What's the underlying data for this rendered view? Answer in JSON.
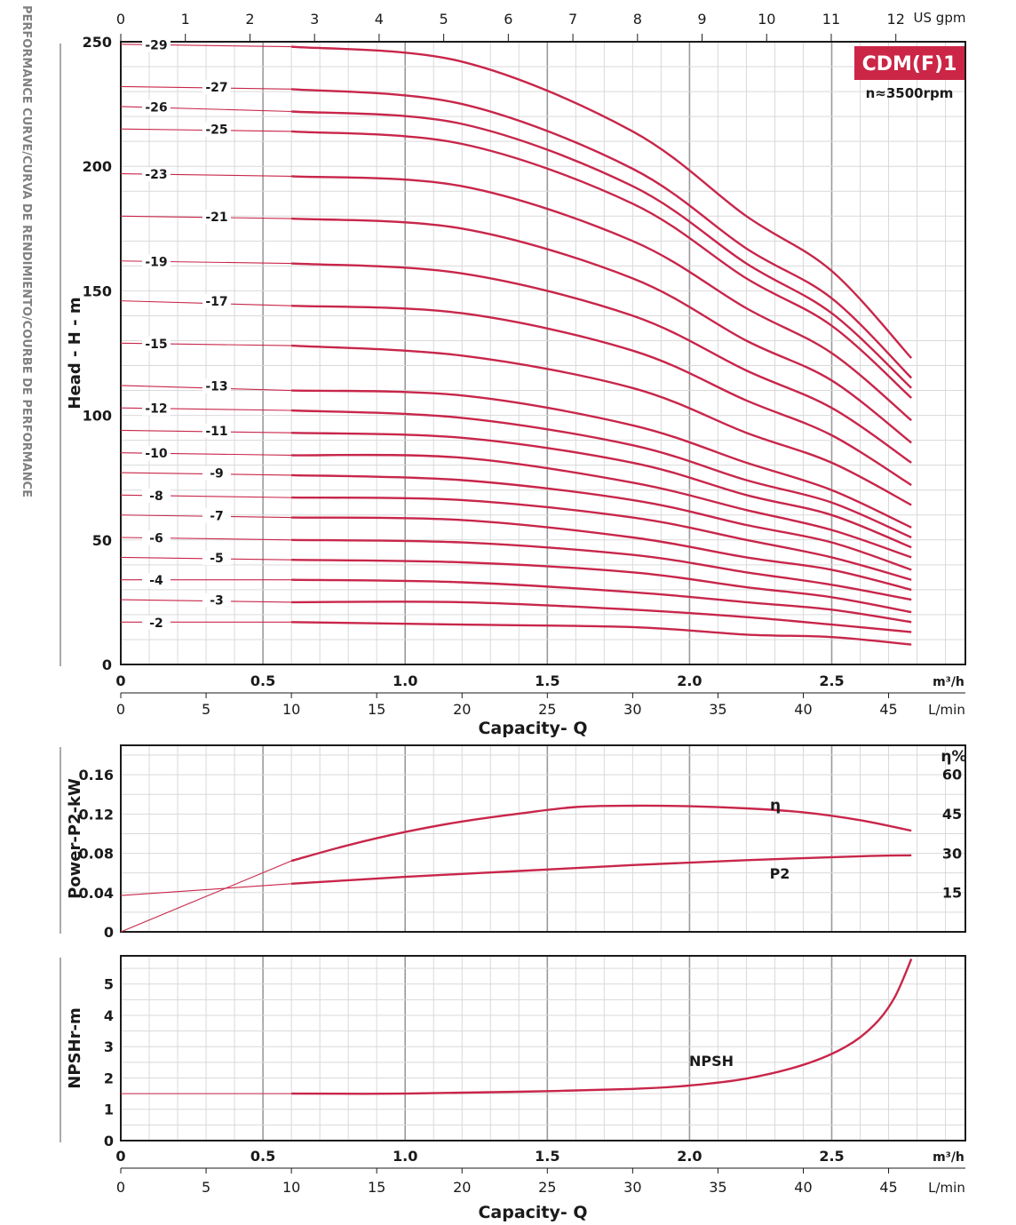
{
  "side_title": "PERFORMANCE CURVE/CURVA DE RENDIMIENTO/COURBE DE PERFORMANCE",
  "model_badge": "CDM(F)1",
  "speed_label": "n≈3500rpm",
  "colors": {
    "curve": "#c8264a",
    "grid_minor": "#d9d9d9",
    "grid_major": "#9a9a9a",
    "frame": "#1a1a1a",
    "badge_bg": "#cc2647",
    "badge_text": "#ffffff"
  },
  "chart_data": [
    {
      "type": "line",
      "name": "head-chart",
      "ylabel": "Head - H - m",
      "ylim": [
        0,
        250
      ],
      "yticks": [
        0,
        50,
        100,
        150,
        200,
        250
      ],
      "xlim_m3h": [
        0,
        2.97
      ],
      "x_top_unit": "US gpm",
      "x_top_ticks": [
        0,
        1,
        2,
        3,
        4,
        5,
        6,
        7,
        8,
        9,
        10,
        11,
        12
      ],
      "x_m3h_unit": "m³/h",
      "x_m3h_ticks": [
        "0",
        "0.5",
        "1.0",
        "1.5",
        "2.0",
        "2.5"
      ],
      "x_lmin_unit": "L/min",
      "x_lmin_ticks": [
        0,
        5,
        10,
        15,
        20,
        25,
        30,
        35,
        40,
        45
      ],
      "xlabel": "Capacity- Q",
      "x": [
        0,
        0.6,
        1.2,
        1.8,
        2.2,
        2.5,
        2.78
      ],
      "series": [
        {
          "name": "-29",
          "values": [
            249,
            248,
            242,
            214,
            180,
            158,
            123
          ]
        },
        {
          "name": "-27",
          "values": [
            232,
            231,
            225,
            199,
            167,
            147,
            115
          ]
        },
        {
          "name": "-26",
          "values": [
            224,
            222,
            217,
            192,
            161,
            141,
            111
          ]
        },
        {
          "name": "-25",
          "values": [
            215,
            214,
            209,
            185,
            155,
            136,
            107
          ]
        },
        {
          "name": "-23",
          "values": [
            197,
            196,
            192,
            170,
            143,
            125,
            98
          ]
        },
        {
          "name": "-21",
          "values": [
            180,
            179,
            175,
            155,
            130,
            114,
            89
          ]
        },
        {
          "name": "-19",
          "values": [
            162,
            161,
            157,
            140,
            118,
            103,
            81
          ]
        },
        {
          "name": "-17",
          "values": [
            146,
            144,
            141,
            126,
            106,
            92,
            72
          ]
        },
        {
          "name": "-15",
          "values": [
            129,
            128,
            124,
            111,
            93,
            81,
            64
          ]
        },
        {
          "name": "-13",
          "values": [
            112,
            110,
            108,
            96,
            81,
            70,
            55
          ]
        },
        {
          "name": "-12",
          "values": [
            103,
            102,
            99,
            88,
            74,
            65,
            51
          ]
        },
        {
          "name": "-11",
          "values": [
            94,
            93,
            91,
            81,
            68,
            60,
            47
          ]
        },
        {
          "name": "-10",
          "values": [
            85,
            84,
            83,
            73,
            62,
            54,
            43
          ]
        },
        {
          "name": "-9",
          "values": [
            77,
            76,
            74,
            66,
            56,
            49,
            38
          ]
        },
        {
          "name": "-8",
          "values": [
            68,
            67,
            66,
            59,
            50,
            43,
            34
          ]
        },
        {
          "name": "-7",
          "values": [
            60,
            59,
            58,
            51,
            43,
            38,
            30
          ]
        },
        {
          "name": "-6",
          "values": [
            51,
            50,
            49,
            44,
            37,
            32,
            26
          ]
        },
        {
          "name": "-5",
          "values": [
            43,
            42,
            41,
            37,
            31,
            27,
            21
          ]
        },
        {
          "name": "-4",
          "values": [
            34,
            34,
            33,
            29,
            25,
            22,
            17
          ]
        },
        {
          "name": "-3",
          "values": [
            26,
            25,
            25,
            22,
            19,
            16,
            13
          ]
        },
        {
          "name": "-2",
          "values": [
            17,
            17,
            16,
            15,
            12,
            11,
            8
          ]
        }
      ]
    },
    {
      "type": "line",
      "name": "power-chart",
      "ylabel": "Power-P2-kW",
      "ylim": [
        0,
        0.19
      ],
      "yticks": [
        "0",
        "0.04",
        "0.08",
        "0.12",
        "0.16"
      ],
      "y2label": "η%",
      "y2lim": [
        0,
        71
      ],
      "y2ticks": [
        15,
        30,
        45,
        60
      ],
      "xlim_m3h": [
        0,
        2.97
      ],
      "series": [
        {
          "name": "η",
          "axis": "right",
          "x": [
            0.6,
            0.8,
            1.0,
            1.2,
            1.4,
            1.6,
            1.8,
            2.0,
            2.2,
            2.4,
            2.6,
            2.78
          ],
          "values": [
            27,
            33,
            38,
            42,
            45,
            47.5,
            48,
            47.8,
            47,
            45.5,
            42.5,
            38.5
          ]
        },
        {
          "name": "P2",
          "axis": "left",
          "x": [
            0.6,
            1.0,
            1.4,
            1.8,
            2.2,
            2.6,
            2.78
          ],
          "values": [
            0.049,
            0.056,
            0.062,
            0.068,
            0.073,
            0.077,
            0.078
          ]
        }
      ],
      "extrapolations": [
        {
          "of": "η",
          "axis": "right",
          "x": [
            0,
            0.6
          ],
          "values": [
            0,
            27
          ]
        },
        {
          "of": "P2",
          "axis": "left",
          "x": [
            0,
            0.6
          ],
          "values": [
            0.037,
            0.049
          ]
        }
      ]
    },
    {
      "type": "line",
      "name": "npsh-chart",
      "ylabel": "NPSHr-m",
      "ylim": [
        0,
        5.9
      ],
      "yticks": [
        0,
        1,
        2,
        3,
        4,
        5
      ],
      "xlim_m3h": [
        0,
        2.97
      ],
      "x_m3h_unit": "m³/h",
      "x_m3h_ticks": [
        "0",
        "0.5",
        "1.0",
        "1.5",
        "2.0",
        "2.5"
      ],
      "x_lmin_unit": "L/min",
      "x_lmin_ticks": [
        0,
        5,
        10,
        15,
        20,
        25,
        30,
        35,
        40,
        45
      ],
      "xlabel": "Capacity- Q",
      "series": [
        {
          "name": "NPSH",
          "x": [
            0.6,
            1.0,
            1.4,
            1.8,
            2.0,
            2.2,
            2.4,
            2.55,
            2.65,
            2.72,
            2.78
          ],
          "values": [
            1.5,
            1.5,
            1.56,
            1.65,
            1.76,
            1.98,
            2.42,
            3.0,
            3.7,
            4.55,
            5.8
          ]
        }
      ],
      "extrapolations": [
        {
          "of": "NPSH",
          "x": [
            0,
            0.6
          ],
          "values": [
            1.5,
            1.5
          ]
        }
      ]
    }
  ]
}
